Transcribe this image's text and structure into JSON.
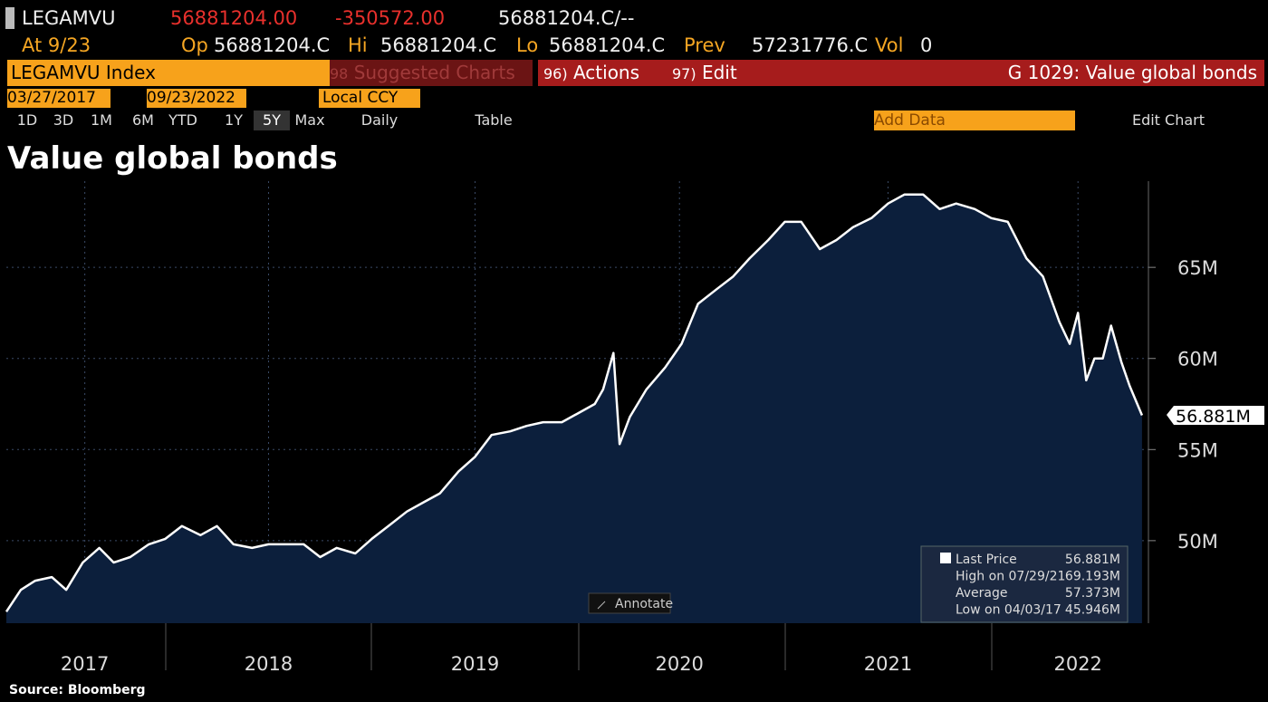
{
  "header": {
    "ticker": "LEGAMVU",
    "last": "56881204.00",
    "change": "-350572.00",
    "bid_ask": "56881204.C/--",
    "at": "At 9/23",
    "op_label": "Op",
    "op": "56881204.C",
    "hi_label": "Hi",
    "hi": "56881204.C",
    "lo_label": "Lo",
    "lo": "56881204.C",
    "prev_label": "Prev",
    "prev": "57231776.C",
    "vol_label": "Vol",
    "vol": "0"
  },
  "toolbar": {
    "security": "LEGAMVU Index",
    "suggested_num": "98",
    "suggested": "Suggested Charts",
    "actions_num": "96)",
    "actions": "Actions",
    "edit_num": "97)",
    "edit": "Edit",
    "function": "G 1029: Value global bonds",
    "start_date": "03/27/2017",
    "end_date": "09/23/2022",
    "currency": "Local CCY",
    "periods": [
      "1D",
      "3D",
      "1M",
      "6M",
      "YTD",
      "1Y",
      "5Y",
      "Max"
    ],
    "frequency": "Daily",
    "table": "Table",
    "add_data": "Add Data",
    "edit_chart": "Edit Chart"
  },
  "chart_data": {
    "type": "area",
    "title": "Value global bonds",
    "x": [
      2017.23,
      2017.3,
      2017.37,
      2017.45,
      2017.52,
      2017.6,
      2017.68,
      2017.75,
      2017.83,
      2017.92,
      2018.0,
      2018.08,
      2018.17,
      2018.25,
      2018.33,
      2018.42,
      2018.5,
      2018.58,
      2018.67,
      2018.75,
      2018.83,
      2018.92,
      2019.0,
      2019.08,
      2019.17,
      2019.25,
      2019.33,
      2019.42,
      2019.5,
      2019.58,
      2019.67,
      2019.75,
      2019.83,
      2019.92,
      2020.0,
      2020.08,
      2020.12,
      2020.17,
      2020.2,
      2020.25,
      2020.33,
      2020.42,
      2020.5,
      2020.58,
      2020.67,
      2020.75,
      2020.83,
      2020.92,
      2021.0,
      2021.08,
      2021.17,
      2021.25,
      2021.33,
      2021.42,
      2021.5,
      2021.58,
      2021.67,
      2021.75,
      2021.83,
      2021.92,
      2022.0,
      2022.08,
      2022.17,
      2022.25,
      2022.33,
      2022.38,
      2022.42,
      2022.46,
      2022.5,
      2022.54,
      2022.58,
      2022.63,
      2022.67,
      2022.73
    ],
    "series": [
      {
        "name": "Last Price",
        "color": "#ffffff",
        "fill": "#0c1f3c",
        "values": [
          46100000,
          47300000,
          47800000,
          48000000,
          47300000,
          48800000,
          49600000,
          48800000,
          49100000,
          49800000,
          50100000,
          50800000,
          50300000,
          50800000,
          49800000,
          49600000,
          49800000,
          49800000,
          49800000,
          49100000,
          49600000,
          49300000,
          50100000,
          50800000,
          51600000,
          52100000,
          52600000,
          53800000,
          54600000,
          55800000,
          56000000,
          56300000,
          56500000,
          56500000,
          57000000,
          57500000,
          58300000,
          60300000,
          55300000,
          56800000,
          58300000,
          59500000,
          60800000,
          63000000,
          63800000,
          64500000,
          65500000,
          66500000,
          67500000,
          67500000,
          66000000,
          66500000,
          67200000,
          67700000,
          68500000,
          69000000,
          69000000,
          68200000,
          68500000,
          68200000,
          67700000,
          67500000,
          65500000,
          64500000,
          62000000,
          60800000,
          62500000,
          58800000,
          60000000,
          60000000,
          61800000,
          59800000,
          58500000,
          56881204
        ]
      }
    ],
    "xlim": [
      2017.23,
      2022.77
    ],
    "xticks": [
      {
        "value": 2017.61,
        "label": "2017"
      },
      {
        "value": 2018.5,
        "label": "2018"
      },
      {
        "value": 2019.5,
        "label": "2019"
      },
      {
        "value": 2020.49,
        "label": "2020"
      },
      {
        "value": 2021.5,
        "label": "2021"
      },
      {
        "value": 2022.42,
        "label": "2022"
      }
    ],
    "ylim": [
      45470000,
      69730000
    ],
    "yticks": [
      {
        "value": 50000000,
        "label": "50M"
      },
      {
        "value": 55000000,
        "label": "55M"
      },
      {
        "value": 60000000,
        "label": "60M"
      },
      {
        "value": 65000000,
        "label": "65M"
      }
    ],
    "grid": true,
    "last_label": "56.881M",
    "annotate": "Annotate",
    "stats": [
      {
        "name": "Last Price",
        "value": "56.881M"
      },
      {
        "name": "High on 07/29/21",
        "value": "69.193M"
      },
      {
        "name": "Average",
        "value": "57.373M"
      },
      {
        "name": "Low on 04/03/17",
        "value": "45.946M"
      }
    ]
  },
  "source": "Source: Bloomberg"
}
